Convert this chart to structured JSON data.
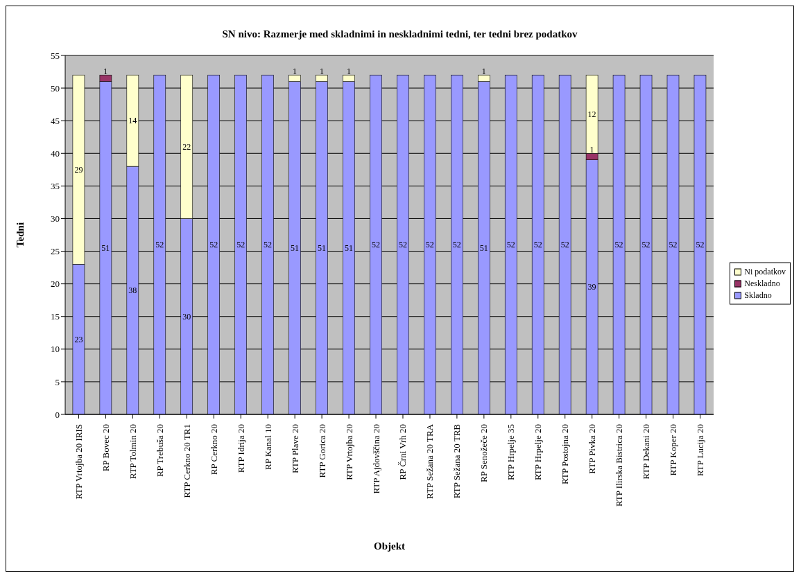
{
  "chart_data": {
    "type": "bar",
    "title": "SN nivo: Razmerje med skladnimi in neskladnimi tedni, ter tedni brez podatkov",
    "xlabel": "Objekt",
    "ylabel": "Tedni",
    "stacked": true,
    "grid": "y",
    "legend": "right",
    "ylim": [
      0,
      55
    ],
    "yticks": [
      0,
      5,
      10,
      15,
      20,
      25,
      30,
      35,
      40,
      45,
      50,
      55
    ],
    "categories": [
      "RTP Vrtojba 20 IRIS",
      "RP Bovec 20",
      "RTP Tolmin 20",
      "RP Trebuša 20",
      "RTP Cerkno 20 TR1",
      "RP Cerkno 20",
      "RTP Idrija 20",
      "RP Kanal 10",
      "RTP Plave 20",
      "RTP Gorica 20",
      "RTP Vrtojba 20",
      "RTP Ajdovščina 20",
      "RP Črni Vrh 20",
      "RTP Sežana 20 TRA",
      "RTP Sežana 20 TRB",
      "RP Senožeče 20",
      "RTP Hrpelje 35",
      "RTP Hrpelje 20",
      "RTP Postojna 20",
      "RTP Pivka 20",
      "RTP Ilirska Bistrica 20",
      "RTP Dekani 20",
      "RTP Koper 20",
      "RTP Lucija 20"
    ],
    "series": [
      {
        "name": "Skladno",
        "color": "#9999ff",
        "values": [
          23,
          51,
          38,
          52,
          30,
          52,
          52,
          52,
          51,
          51,
          51,
          52,
          52,
          52,
          52,
          51,
          52,
          52,
          52,
          39,
          52,
          52,
          52,
          52
        ],
        "value_labels": [
          "23",
          "51",
          "38",
          "52",
          "30",
          "52",
          "52",
          "52",
          "51",
          "51",
          "51",
          "52",
          "52",
          "52",
          "52",
          "51",
          "52",
          "52",
          "52",
          "39",
          "52",
          "52",
          "52",
          "52"
        ]
      },
      {
        "name": "Neskladno",
        "color": "#993366",
        "values": [
          0,
          1,
          0,
          0,
          0,
          0,
          0,
          0,
          0,
          0,
          0,
          0,
          0,
          0,
          0,
          0,
          0,
          0,
          0,
          1,
          0,
          0,
          0,
          0
        ],
        "value_labels": [
          null,
          "1",
          null,
          null,
          null,
          null,
          null,
          null,
          null,
          null,
          null,
          null,
          null,
          null,
          null,
          null,
          null,
          null,
          null,
          "1",
          null,
          null,
          null,
          null
        ]
      },
      {
        "name": "Ni podatkov",
        "color": "#ffffcc",
        "values": [
          29,
          0,
          14,
          0,
          22,
          0,
          0,
          0,
          1,
          1,
          1,
          0,
          0,
          0,
          0,
          1,
          0,
          0,
          0,
          12,
          0,
          0,
          0,
          0
        ],
        "value_labels": [
          "29",
          null,
          "14",
          null,
          "22",
          null,
          null,
          null,
          "1",
          "1",
          "1",
          null,
          null,
          null,
          null,
          "1",
          null,
          null,
          null,
          "12",
          null,
          null,
          null,
          null
        ]
      }
    ]
  }
}
